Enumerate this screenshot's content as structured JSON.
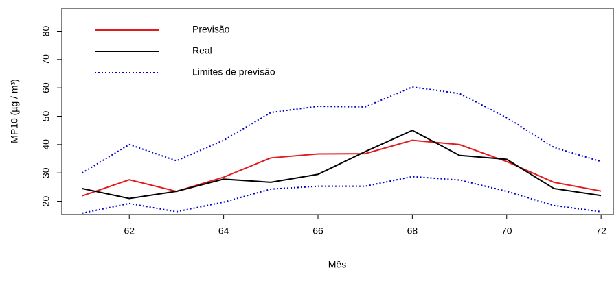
{
  "chart_data": {
    "type": "line",
    "x": [
      61,
      62,
      63,
      64,
      65,
      66,
      67,
      68,
      69,
      70,
      71,
      72
    ],
    "xlabel": "Mês",
    "ylabel": "MP10 (µg / m³)",
    "series": [
      {
        "name": "Previsão",
        "color": "#e41a1c",
        "style": "solid",
        "values": [
          21.9,
          27.6,
          23.5,
          28.5,
          35.3,
          36.7,
          36.8,
          41.5,
          40,
          34,
          26.7,
          23.6
        ]
      },
      {
        "name": "Real",
        "color": "#000000",
        "style": "solid",
        "values": [
          24.5,
          21,
          23.5,
          27.8,
          26.7,
          29.5,
          37.5,
          45,
          36.2,
          34.8,
          24.5,
          22
        ]
      },
      {
        "name": "Limites de previsão",
        "color": "#0000cc",
        "style": "dotted",
        "values": [
          30,
          40,
          34.3,
          41.5,
          51.3,
          53.5,
          53.3,
          60.3,
          58,
          49.5,
          39,
          34
        ],
        "lower": [
          15.8,
          19.2,
          16.3,
          19.7,
          24.3,
          25.3,
          25.3,
          28.7,
          27.5,
          23.5,
          18.5,
          16.3
        ]
      }
    ],
    "xlim": [
      60.57,
      72.26
    ],
    "xticks": [
      62,
      64,
      66,
      68,
      70,
      72
    ],
    "ylim": [
      15.3,
      88.1
    ],
    "yticks": [
      20,
      30,
      40,
      50,
      60,
      70,
      80
    ],
    "legend": "top-left"
  }
}
